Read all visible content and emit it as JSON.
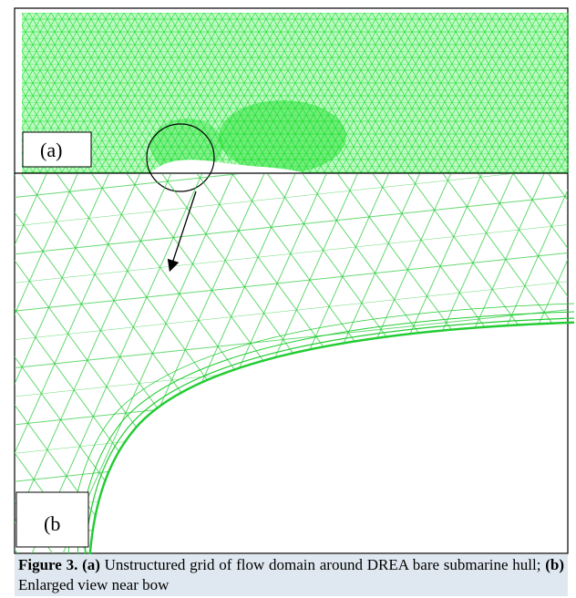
{
  "figure": {
    "panel_a_label": "(a)",
    "panel_b_label": "(b",
    "caption": {
      "number": "Figure 3.",
      "part_a_tag": "(a)",
      "part_a_text": "Unstructured grid of flow domain around DREA bare submarine hull;",
      "part_b_tag": "(b)",
      "part_b_text": "Enlarged view near bow"
    }
  }
}
